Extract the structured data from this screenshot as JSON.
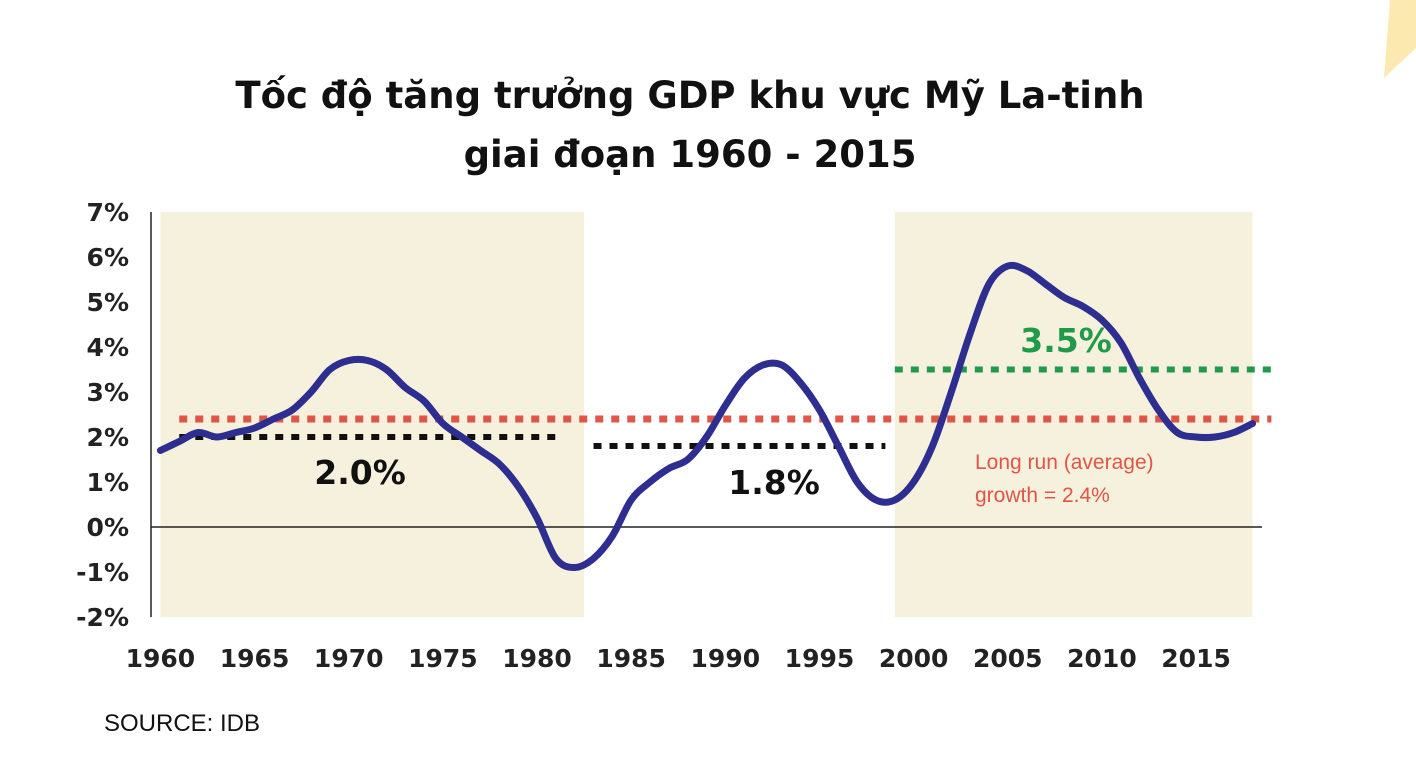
{
  "title_line1": "Tốc độ tăng trưởng GDP khu vực Mỹ La-tinh",
  "title_line2": "giai đoạn 1960 - 2015",
  "source": "SOURCE: IDB",
  "colors": {
    "line": "#2d2e8f",
    "shade": "#f6f1dd",
    "average": "#e05546",
    "period_avg": "#111111",
    "recent_avg": "#1e9a4a",
    "corner": "#fbe9b0"
  },
  "chart_data": {
    "type": "line",
    "title": "Tốc độ tăng trưởng GDP khu vực Mỹ La-tinh giai đoạn 1960 - 2015",
    "xlabel": "",
    "ylabel": "",
    "xlim": [
      1959.5,
      2018.5
    ],
    "ylim": [
      -2,
      7
    ],
    "x_ticks": [
      1960,
      1965,
      1970,
      1975,
      1980,
      1985,
      1990,
      1995,
      2000,
      2005,
      2010,
      2015
    ],
    "y_ticks": [
      -2,
      -1,
      0,
      1,
      2,
      3,
      4,
      5,
      6,
      7
    ],
    "y_tick_labels": [
      "-2%",
      "-1%",
      "0%",
      "1%",
      "2%",
      "3%",
      "4%",
      "5%",
      "6%",
      "7%"
    ],
    "grid": false,
    "series": [
      {
        "x": [
          1960,
          1961,
          1962,
          1963,
          1964,
          1965,
          1966,
          1967,
          1968,
          1969,
          1970,
          1971,
          1972,
          1973,
          1974,
          1975,
          1976,
          1977,
          1978,
          1979,
          1980,
          1981,
          1982,
          1983,
          1984,
          1985,
          1986,
          1987,
          1988,
          1989,
          1990,
          1991,
          1992,
          1993,
          1994,
          1995,
          1996,
          1997,
          1998,
          1999,
          2000,
          2001,
          2002,
          2003,
          2004,
          2005,
          2006,
          2007,
          2008,
          2009,
          2010,
          2011,
          2012,
          2013,
          2014,
          2015,
          2016,
          2017,
          2018
        ],
        "values": [
          1.7,
          1.9,
          2.1,
          2.0,
          2.1,
          2.2,
          2.4,
          2.6,
          3.0,
          3.5,
          3.7,
          3.7,
          3.5,
          3.1,
          2.8,
          2.3,
          2.0,
          1.7,
          1.4,
          0.9,
          0.2,
          -0.7,
          -0.9,
          -0.7,
          -0.2,
          0.6,
          1.0,
          1.3,
          1.5,
          2.0,
          2.7,
          3.3,
          3.6,
          3.6,
          3.2,
          2.6,
          1.8,
          1.0,
          0.6,
          0.6,
          1.0,
          1.8,
          3.0,
          4.3,
          5.4,
          5.8,
          5.7,
          5.4,
          5.1,
          4.9,
          4.6,
          4.1,
          3.3,
          2.6,
          2.1,
          2.0,
          2.0,
          2.1,
          2.3
        ]
      }
    ],
    "shaded_periods": [
      {
        "from": 1960,
        "to": 1982.5
      },
      {
        "from": 1999,
        "to": 2018
      }
    ],
    "reference_lines": [
      {
        "value": 2.4,
        "from": 1961,
        "to": 2019,
        "style": "dotted",
        "color_key": "average"
      },
      {
        "value": 2.0,
        "from": 1961,
        "to": 1981,
        "style": "dotted",
        "color_key": "period_avg"
      },
      {
        "value": 1.8,
        "from": 1983,
        "to": 1998.5,
        "style": "dotted",
        "color_key": "period_avg"
      },
      {
        "value": 3.5,
        "from": 1999,
        "to": 2019,
        "style": "dotted",
        "color_key": "recent_avg"
      }
    ],
    "annotations": [
      {
        "text": "2.0%",
        "color_key": "period_avg"
      },
      {
        "text": "1.8%",
        "color_key": "period_avg"
      },
      {
        "text": "3.5%",
        "color_key": "recent_avg"
      },
      {
        "text": "Long run (average)",
        "color_key": "average"
      },
      {
        "text": "growth = 2.4%",
        "color_key": "average"
      }
    ]
  }
}
